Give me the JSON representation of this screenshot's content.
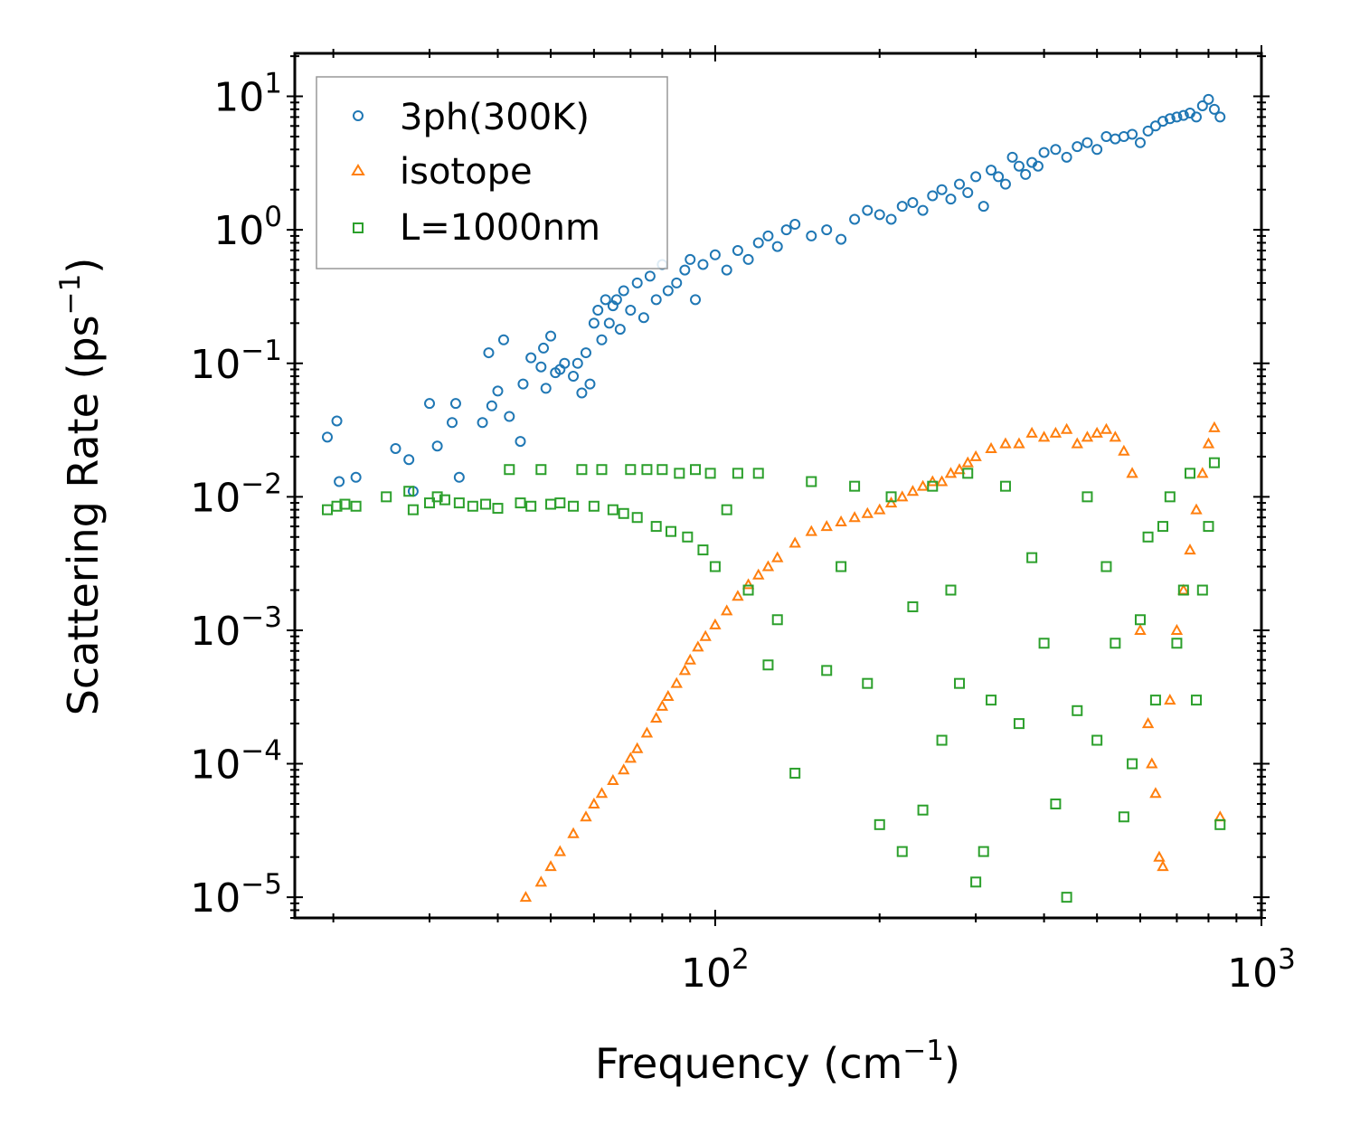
{
  "chart_data": {
    "type": "scatter",
    "title": "",
    "xlabel": "Frequency (cm",
    "xlabel_sup": "−1",
    "xlabel_close": ")",
    "ylabel": "Scattering Rate (ps",
    "ylabel_sup": "−1",
    "ylabel_close": ")",
    "xscale": "log",
    "yscale": "log",
    "xlim": [
      17,
      1000
    ],
    "ylim": [
      7e-06,
      21
    ],
    "x_ticks": [
      {
        "base": "10",
        "exp": "2",
        "value": 100
      },
      {
        "base": "10",
        "exp": "3",
        "value": 1000
      }
    ],
    "y_ticks": [
      {
        "base": "10",
        "exp": "1",
        "value": 10
      },
      {
        "base": "10",
        "exp": "0",
        "value": 1
      },
      {
        "base": "10",
        "exp": "−1",
        "value": 0.1
      },
      {
        "base": "10",
        "exp": "−2",
        "value": 0.01
      },
      {
        "base": "10",
        "exp": "−3",
        "value": 0.001
      },
      {
        "base": "10",
        "exp": "−4",
        "value": 0.0001
      },
      {
        "base": "10",
        "exp": "−5",
        "value": 1e-05
      }
    ],
    "legend_position": "top-left",
    "series": [
      {
        "name": "3ph(300K)",
        "marker": "circle",
        "color": "#1f77b4",
        "x": [
          19.5,
          20.3,
          20.5,
          22,
          26,
          27.5,
          28,
          30,
          31,
          33,
          33.5,
          34,
          37.5,
          38.5,
          39,
          40,
          41,
          42,
          44,
          44.5,
          46,
          48,
          48.5,
          49,
          50,
          51,
          52,
          53,
          55,
          56,
          57,
          58,
          59,
          60,
          61,
          62,
          63,
          64,
          65,
          66,
          67,
          68,
          70,
          72,
          74,
          76,
          78,
          80,
          82,
          85,
          88,
          90,
          92,
          95,
          100,
          105,
          110,
          115,
          120,
          125,
          130,
          135,
          140,
          150,
          160,
          170,
          180,
          190,
          200,
          210,
          220,
          230,
          240,
          250,
          260,
          270,
          280,
          290,
          300,
          310,
          320,
          330,
          340,
          350,
          360,
          370,
          380,
          390,
          400,
          420,
          440,
          460,
          480,
          500,
          520,
          540,
          560,
          580,
          600,
          620,
          640,
          660,
          680,
          700,
          720,
          740,
          760,
          780,
          800,
          820,
          840
        ],
        "y": [
          0.028,
          0.037,
          0.013,
          0.014,
          0.023,
          0.019,
          0.011,
          0.05,
          0.024,
          0.036,
          0.05,
          0.014,
          0.036,
          0.12,
          0.048,
          0.062,
          0.15,
          0.04,
          0.026,
          0.07,
          0.11,
          0.094,
          0.13,
          0.065,
          0.16,
          0.085,
          0.09,
          0.1,
          0.08,
          0.1,
          0.06,
          0.12,
          0.07,
          0.2,
          0.25,
          0.15,
          0.3,
          0.2,
          0.27,
          0.3,
          0.18,
          0.35,
          0.25,
          0.4,
          0.22,
          0.45,
          0.3,
          0.55,
          0.35,
          0.4,
          0.5,
          0.6,
          0.3,
          0.55,
          0.65,
          0.5,
          0.7,
          0.6,
          0.8,
          0.9,
          0.75,
          1.0,
          1.1,
          0.9,
          1.0,
          0.85,
          1.2,
          1.4,
          1.3,
          1.2,
          1.5,
          1.6,
          1.4,
          1.8,
          2.0,
          1.7,
          2.2,
          1.9,
          2.5,
          1.5,
          2.8,
          2.5,
          2.2,
          3.5,
          3.0,
          2.6,
          3.2,
          3.0,
          3.8,
          4.0,
          3.5,
          4.2,
          4.5,
          4.0,
          5.0,
          4.8,
          5.0,
          5.2,
          4.5,
          5.5,
          6.0,
          6.5,
          6.8,
          7.0,
          7.2,
          7.5,
          7.0,
          8.5,
          9.5,
          8.0,
          7.0
        ]
      },
      {
        "name": "isotope",
        "marker": "triangle",
        "color": "#ff7f0e",
        "x": [
          45,
          48,
          50,
          52,
          55,
          58,
          60,
          62,
          65,
          68,
          70,
          72,
          75,
          78,
          80,
          82,
          85,
          88,
          90,
          93,
          96,
          100,
          105,
          110,
          115,
          120,
          125,
          130,
          140,
          150,
          160,
          170,
          180,
          190,
          200,
          210,
          220,
          230,
          240,
          250,
          260,
          270,
          280,
          290,
          300,
          320,
          340,
          360,
          380,
          400,
          420,
          440,
          460,
          480,
          500,
          520,
          540,
          560,
          580,
          600,
          620,
          630,
          640,
          650,
          660,
          680,
          700,
          720,
          740,
          760,
          780,
          800,
          820,
          840
        ],
        "y": [
          1e-05,
          1.3e-05,
          1.7e-05,
          2.2e-05,
          3e-05,
          4e-05,
          5e-05,
          6e-05,
          7.5e-05,
          9e-05,
          0.00011,
          0.00013,
          0.00017,
          0.00022,
          0.00027,
          0.00032,
          0.0004,
          0.0005,
          0.0006,
          0.00075,
          0.0009,
          0.0011,
          0.0014,
          0.0018,
          0.0022,
          0.0026,
          0.003,
          0.0035,
          0.0045,
          0.0055,
          0.006,
          0.0065,
          0.007,
          0.0075,
          0.008,
          0.009,
          0.01,
          0.011,
          0.012,
          0.013,
          0.013,
          0.015,
          0.016,
          0.018,
          0.02,
          0.023,
          0.025,
          0.025,
          0.03,
          0.028,
          0.03,
          0.032,
          0.025,
          0.028,
          0.03,
          0.032,
          0.028,
          0.022,
          0.015,
          0.001,
          0.0002,
          0.0001,
          6e-05,
          2e-05,
          1.7e-05,
          0.0003,
          0.001,
          0.002,
          0.004,
          0.008,
          0.015,
          0.025,
          0.033,
          4e-05
        ]
      },
      {
        "name": "L=1000nm",
        "marker": "square",
        "color": "#2ca02c",
        "x": [
          19.5,
          20.3,
          21,
          22,
          25,
          27.5,
          28,
          30,
          31,
          32,
          34,
          36,
          38,
          40,
          42,
          44,
          46,
          48,
          50,
          52,
          55,
          57,
          60,
          62,
          65,
          68,
          70,
          72,
          75,
          78,
          80,
          83,
          86,
          89,
          92,
          95,
          98,
          100,
          105,
          110,
          115,
          120,
          125,
          130,
          140,
          150,
          160,
          170,
          180,
          190,
          200,
          210,
          220,
          230,
          240,
          250,
          260,
          270,
          280,
          290,
          300,
          310,
          320,
          340,
          360,
          380,
          400,
          420,
          440,
          460,
          480,
          500,
          520,
          540,
          560,
          580,
          600,
          620,
          640,
          660,
          680,
          700,
          720,
          740,
          760,
          780,
          800,
          820,
          840
        ],
        "y": [
          0.008,
          0.0085,
          0.0088,
          0.0085,
          0.01,
          0.011,
          0.008,
          0.009,
          0.01,
          0.0095,
          0.009,
          0.0085,
          0.0088,
          0.0082,
          0.016,
          0.009,
          0.0085,
          0.016,
          0.0088,
          0.009,
          0.0085,
          0.016,
          0.0085,
          0.016,
          0.008,
          0.0075,
          0.016,
          0.007,
          0.016,
          0.006,
          0.016,
          0.0055,
          0.015,
          0.005,
          0.016,
          0.004,
          0.015,
          0.003,
          0.008,
          0.015,
          0.002,
          0.015,
          0.00055,
          0.0012,
          8.5e-05,
          0.013,
          0.0005,
          0.003,
          0.012,
          0.0004,
          3.5e-05,
          0.01,
          2.2e-05,
          0.0015,
          4.5e-05,
          0.012,
          0.00015,
          0.002,
          0.0004,
          0.015,
          1.3e-05,
          2.2e-05,
          0.0003,
          0.012,
          0.0002,
          0.0035,
          0.0008,
          5e-05,
          1e-05,
          0.00025,
          0.01,
          0.00015,
          0.003,
          0.0008,
          4e-05,
          0.0001,
          0.0012,
          0.005,
          0.0003,
          0.006,
          0.01,
          0.0008,
          0.002,
          0.015,
          0.0003,
          0.002,
          0.006,
          0.018,
          3.5e-05
        ]
      }
    ]
  }
}
